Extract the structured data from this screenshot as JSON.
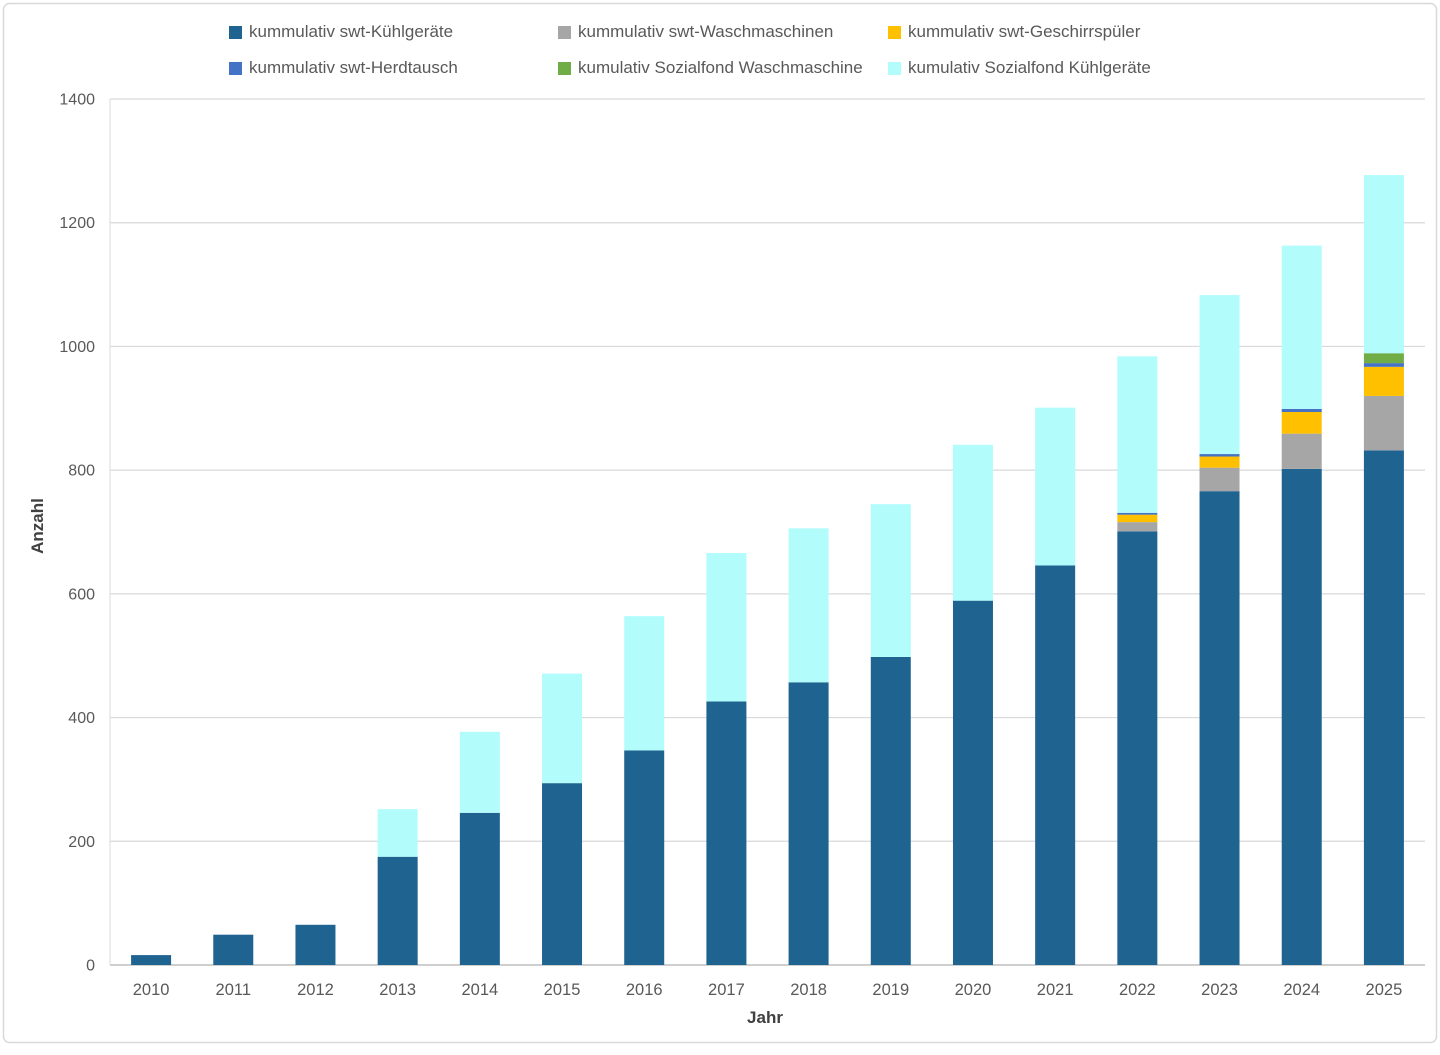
{
  "chart_data": {
    "type": "bar",
    "stacked": true,
    "title": "",
    "xlabel": "Jahr",
    "ylabel": "Anzahl",
    "ylim": [
      0,
      1400
    ],
    "ytick_step": 200,
    "grid": true,
    "legend_position": "top",
    "categories": [
      "2010",
      "2011",
      "2012",
      "2013",
      "2014",
      "2015",
      "2016",
      "2017",
      "2018",
      "2019",
      "2020",
      "2021",
      "2022",
      "2023",
      "2024",
      "2025"
    ],
    "series": [
      {
        "name": "kummulativ swt-Kühlgeräte",
        "color": "#1F6390",
        "values": [
          16,
          49,
          65,
          175,
          246,
          294,
          347,
          426,
          457,
          498,
          589,
          646,
          701,
          766,
          802,
          832
        ]
      },
      {
        "name": "kummulativ swt-Waschmaschinen",
        "color": "#A6A6A6",
        "values": [
          0,
          0,
          0,
          0,
          0,
          0,
          0,
          0,
          0,
          0,
          0,
          0,
          15,
          38,
          57,
          88
        ]
      },
      {
        "name": "kummulativ swt-Geschirrspüler",
        "color": "#FFC000",
        "values": [
          0,
          0,
          0,
          0,
          0,
          0,
          0,
          0,
          0,
          0,
          0,
          0,
          12,
          18,
          35,
          47
        ]
      },
      {
        "name": "kummulativ swt-Herdtausch",
        "color": "#4472C4",
        "values": [
          0,
          0,
          0,
          0,
          0,
          0,
          0,
          0,
          0,
          0,
          0,
          0,
          3,
          4,
          5,
          6
        ]
      },
      {
        "name": "kumulativ Sozialfond Waschmaschine",
        "color": "#70AD47",
        "values": [
          0,
          0,
          0,
          0,
          0,
          0,
          0,
          0,
          0,
          0,
          0,
          0,
          0,
          0,
          0,
          16
        ]
      },
      {
        "name": "kumulativ Sozialfond Kühlgeräte",
        "color": "#B3FCFC",
        "values": [
          0,
          0,
          0,
          77,
          131,
          177,
          217,
          240,
          249,
          247,
          252,
          255,
          253,
          257,
          264,
          288
        ]
      }
    ]
  },
  "colors": {
    "background": "#FFFFFF",
    "gridline": "#D9D9D9",
    "axis_line": "#BFBFBF",
    "tick_text": "#595959",
    "title_text": "#404040",
    "frame_border": "#D9D9D9"
  }
}
